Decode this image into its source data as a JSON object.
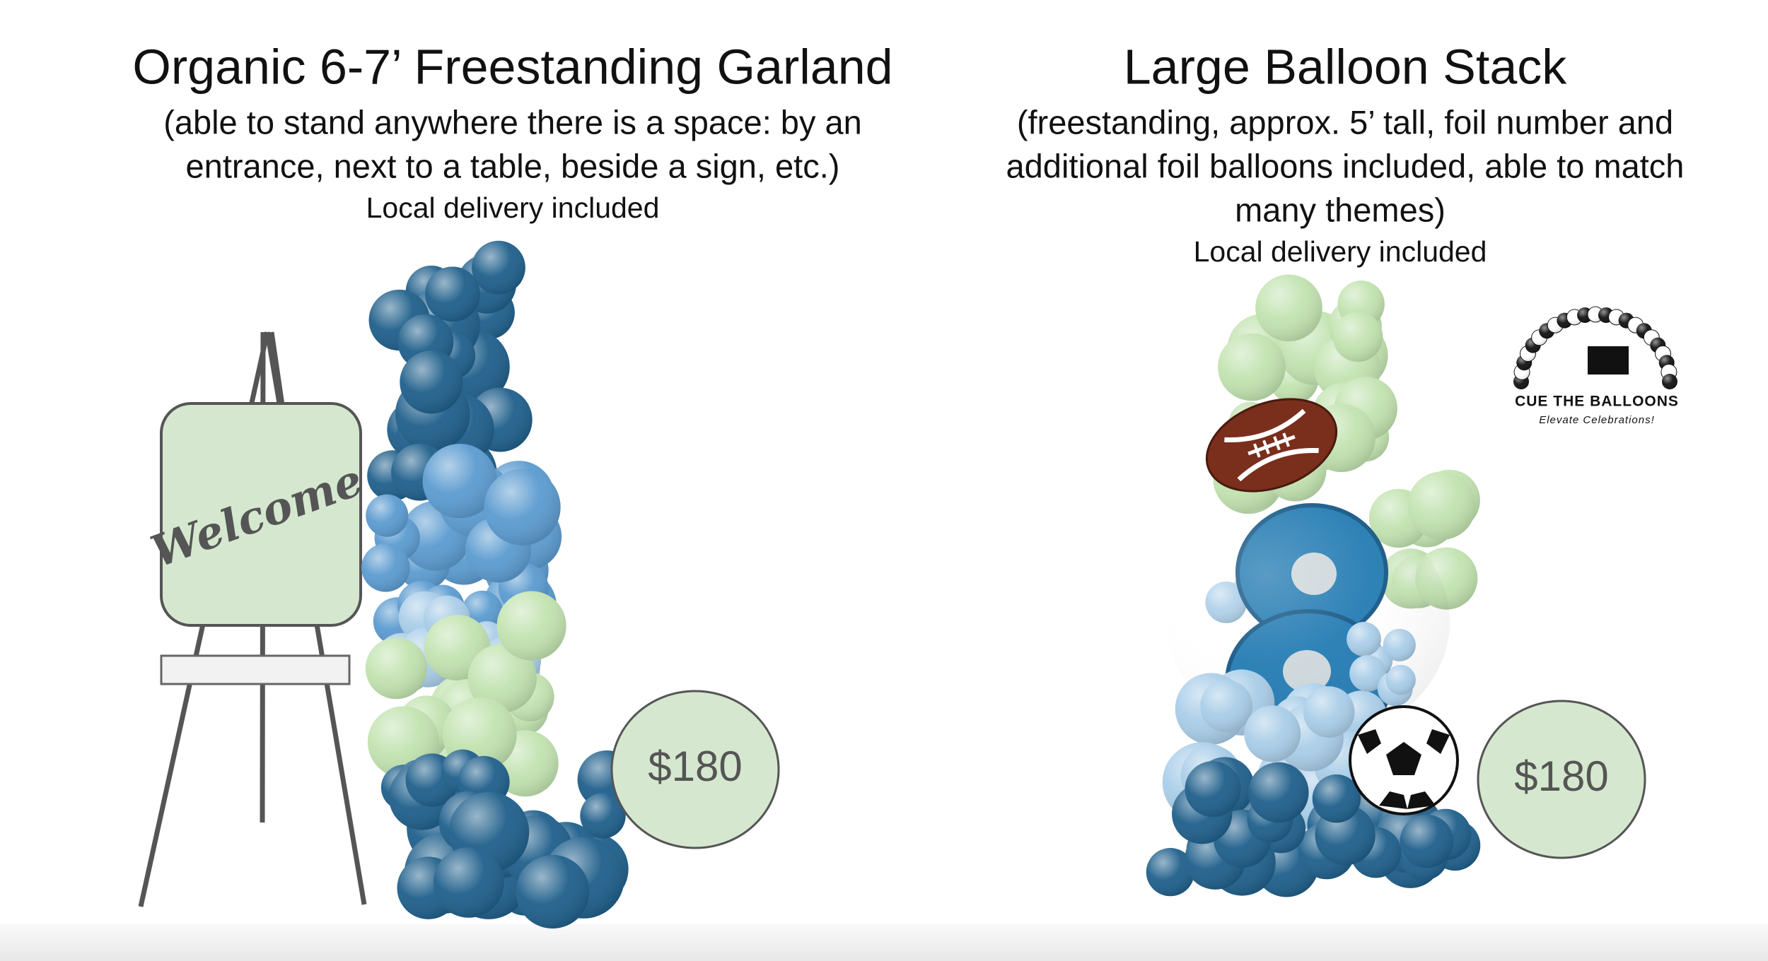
{
  "left": {
    "title": "Organic 6-7’ Freestanding Garland",
    "subtitle": [
      "(able to stand anywhere there is a space: by an",
      "entrance, next to a table, beside a sign, etc.)"
    ],
    "delivery": "Local delivery  included",
    "sign": "Welcome",
    "price": "$180"
  },
  "right": {
    "title": "Large Balloon Stack",
    "subtitle": [
      "(freestanding, approx. 5’ tall, foil number and",
      "additional foil balloons included, able to match",
      "many themes)"
    ],
    "delivery": "Local delivery included",
    "price": "$180",
    "logo": {
      "name": "CUE THE BALLOONS",
      "tagline": "Elevate Celebrations!"
    }
  }
}
